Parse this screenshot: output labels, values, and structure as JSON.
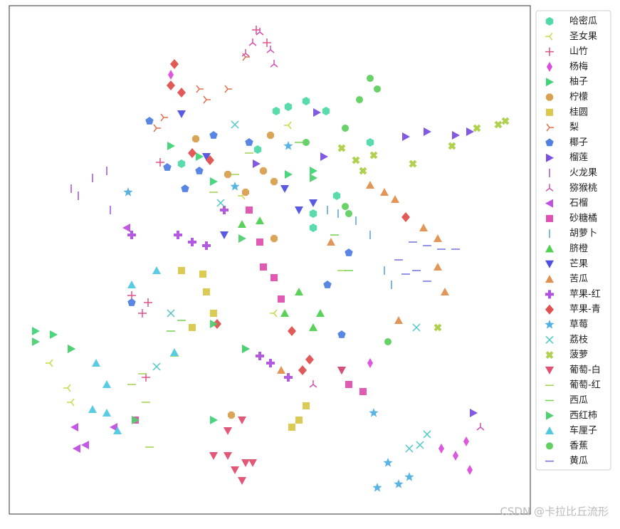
{
  "chart_data": {
    "type": "scatter",
    "xlim": [
      13,
      745
    ],
    "ylim": [
      722,
      8
    ],
    "watermark": "CSDN @卡拉比丘流形",
    "series": [
      {
        "name": "哈密瓜",
        "color": "#50d9a8",
        "marker": "hexagon",
        "x": [
          388,
          405,
          430,
          458,
          440,
          473,
          255,
          520,
          362,
          440
        ],
        "y": [
          156,
          150,
          142,
          156,
          300,
          275,
          230,
          200,
          210,
          320
        ]
      },
      {
        "name": "圣女果",
        "color": "#c8d94a",
        "marker": "tri_left",
        "x": [
          70,
          95,
          100,
          385,
          405,
          340
        ],
        "y": [
          510,
          545,
          565,
          440,
          176,
          275
        ]
      },
      {
        "name": "山竹",
        "color": "#e0508a",
        "marker": "plus",
        "x": [
          360,
          375,
          225,
          185,
          200,
          208,
          205
        ],
        "y": [
          42,
          60,
          228,
          415,
          440,
          425,
          530
        ]
      },
      {
        "name": "杨梅",
        "color": "#dd4ddd",
        "marker": "thin_diamond",
        "x": [
          240,
          520,
          620,
          655,
          660,
          640
        ],
        "y": [
          105,
          510,
          630,
          620,
          660,
          640
        ]
      },
      {
        "name": "柚子",
        "color": "#3fd475",
        "marker": "triangle_right",
        "x": [
          50,
          75,
          100,
          240,
          280,
          300,
          405,
          440,
          345,
          300
        ],
        "y": [
          465,
          470,
          490,
          205,
          220,
          255,
          245,
          240,
          490,
          590
        ]
      },
      {
        "name": "柠檬",
        "color": "#d9a050",
        "marker": "octagon",
        "x": [
          275,
          320,
          345,
          370,
          385,
          385,
          325,
          380
        ],
        "y": [
          195,
          245,
          270,
          240,
          255,
          335,
          583,
          190
        ]
      },
      {
        "name": "桂圆",
        "color": "#d9c84a",
        "marker": "square",
        "x": [
          285,
          290,
          300,
          270,
          410,
          420,
          430,
          255
        ],
        "y": [
          385,
          410,
          440,
          460,
          600,
          590,
          570,
          380
        ]
      },
      {
        "name": "梨",
        "color": "#e07050",
        "marker": "tri_right",
        "x": [
          230,
          220,
          290,
          320,
          345,
          280
        ],
        "y": [
          165,
          180,
          140,
          125,
          80,
          125
        ]
      },
      {
        "name": "椰子",
        "color": "#5080e0",
        "marker": "pentagon",
        "x": [
          210,
          235,
          260,
          280,
          300,
          350,
          490,
          460,
          480,
          185
        ],
        "y": [
          170,
          235,
          265,
          240,
          190,
          200,
          355,
          400,
          470,
          425
        ]
      },
      {
        "name": "榴莲",
        "color": "#7a50e0",
        "marker": "triangle_right",
        "x": [
          445,
          570,
          600,
          640,
          660,
          360,
          455,
          665
        ],
        "y": [
          158,
          192,
          185,
          190,
          185,
          230,
          220,
          580
        ]
      },
      {
        "name": "火龙果",
        "color": "#9a50e0",
        "marker": "vline",
        "x": [
          100,
          130,
          150,
          155,
          110
        ],
        "y": [
          265,
          250,
          240,
          295,
          275
        ]
      },
      {
        "name": "猕猴桃",
        "color": "#d050b0",
        "marker": "tri_up",
        "x": [
          345,
          355,
          365,
          380,
          385,
          675,
          440
        ],
        "y": [
          75,
          60,
          45,
          70,
          90,
          600,
          540
        ]
      },
      {
        "name": "石榴",
        "color": "#c050e0",
        "marker": "triangle_left",
        "x": [
          105,
          120,
          178,
          160,
          108
        ],
        "y": [
          600,
          625,
          320,
          600,
          630
        ]
      },
      {
        "name": "砂糖橘",
        "color": "#e050b0",
        "marker": "square",
        "x": [
          350,
          365,
          385,
          395,
          490,
          510,
          190,
          370
        ],
        "y": [
          295,
          340,
          390,
          420,
          540,
          550,
          590,
          375
        ]
      },
      {
        "name": "胡萝卜",
        "color": "#50a0e0",
        "marker": "vline",
        "x": [
          460,
          475,
          520,
          540,
          550,
          500
        ],
        "y": [
          295,
          300,
          330,
          380,
          400,
          310
        ]
      },
      {
        "name": "脐橙",
        "color": "#50d050",
        "marker": "triangle_up",
        "x": [
          340,
          365,
          420,
          440,
          450,
          400
        ],
        "y": [
          315,
          310,
          410,
          460,
          440,
          440
        ]
      },
      {
        "name": "芒果",
        "color": "#5050e0",
        "marker": "triangle_down",
        "x": [
          255,
          290,
          315,
          420,
          440,
          480,
          400
        ],
        "y": [
          160,
          220,
          330,
          295,
          285,
          520,
          265
        ]
      },
      {
        "name": "苦瓜",
        "color": "#e09050",
        "marker": "triangle_up",
        "x": [
          520,
          540,
          555,
          595,
          615,
          615,
          625,
          560,
          465,
          395
        ],
        "y": [
          260,
          270,
          280,
          320,
          335,
          375,
          410,
          450,
          340,
          520
        ]
      },
      {
        "name": "苹果-红",
        "color": "#b050e0",
        "marker": "thick_plus",
        "x": [
          250,
          270,
          290,
          185,
          315,
          365,
          380,
          405
        ],
        "y": [
          330,
          340,
          345,
          330,
          295,
          500,
          510,
          530
        ]
      },
      {
        "name": "苹果-青",
        "color": "#e05050",
        "marker": "diamond",
        "x": [
          245,
          240,
          255,
          270,
          295,
          570,
          425,
          435,
          410,
          305
        ],
        "y": [
          90,
          120,
          130,
          215,
          225,
          305,
          520,
          505,
          465,
          455
        ]
      },
      {
        "name": "草莓",
        "color": "#50b0e0",
        "marker": "star",
        "x": [
          180,
          330,
          405,
          525,
          545,
          560,
          575,
          530
        ],
        "y": [
          270,
          262,
          205,
          580,
          650,
          680,
          670,
          685
        ]
      },
      {
        "name": "荔枝",
        "color": "#50c8c8",
        "marker": "x",
        "x": [
          330,
          310,
          240,
          220,
          585,
          600,
          575,
          590
        ],
        "y": [
          175,
          285,
          440,
          515,
          460,
          610,
          630,
          625
        ]
      },
      {
        "name": "菠萝",
        "color": "#b0d050",
        "marker": "thick_x",
        "x": [
          480,
          500,
          510,
          525,
          580,
          635,
          670,
          700,
          710,
          615
        ],
        "y": [
          208,
          225,
          240,
          218,
          230,
          205,
          180,
          175,
          170,
          460
        ]
      },
      {
        "name": "葡萄-白",
        "color": "#e05070",
        "marker": "triangle_down",
        "x": [
          340,
          320,
          330,
          345,
          355,
          340,
          300,
          320,
          480
        ],
        "y": [
          590,
          640,
          660,
          650,
          650,
          675,
          640,
          605,
          520
        ]
      },
      {
        "name": "葡萄-红",
        "color": "#a0d050",
        "marker": "hline",
        "x": [
          300,
          330,
          350,
          480,
          200,
          185,
          205,
          210
        ],
        "y": [
          270,
          245,
          215,
          380,
          525,
          540,
          565,
          628
        ]
      },
      {
        "name": "西瓜",
        "color": "#70d050",
        "marker": "hline",
        "x": [
          240,
          245,
          255,
          470,
          490,
          420
        ],
        "y": [
          465,
          500,
          450,
          330,
          380,
          200
        ]
      },
      {
        "name": "西红柿",
        "color": "#50d070",
        "marker": "triangle_right",
        "x": [
          50,
          100,
          300,
          345,
          190,
          340,
          440
        ],
        "y": [
          480,
          490,
          455,
          490,
          590,
          335,
          250
        ]
      },
      {
        "name": "车厘子",
        "color": "#50c8e0",
        "marker": "triangle_up",
        "x": [
          135,
          150,
          130,
          150,
          165,
          220,
          245,
          185
        ],
        "y": [
          510,
          540,
          575,
          580,
          605,
          380,
          495,
          400
        ]
      },
      {
        "name": "香蕉",
        "color": "#60d060",
        "marker": "circle",
        "x": [
          520,
          530,
          505,
          485,
          485,
          545,
          490,
          430
        ],
        "y": [
          110,
          125,
          140,
          180,
          290,
          480,
          300,
          200
        ]
      },
      {
        "name": "黄瓜",
        "color": "#7070e0",
        "marker": "hline",
        "x": [
          580,
          600,
          620,
          640,
          585,
          600,
          560,
          570
        ],
        "y": [
          340,
          345,
          350,
          350,
          380,
          395,
          365,
          385
        ]
      }
    ]
  }
}
